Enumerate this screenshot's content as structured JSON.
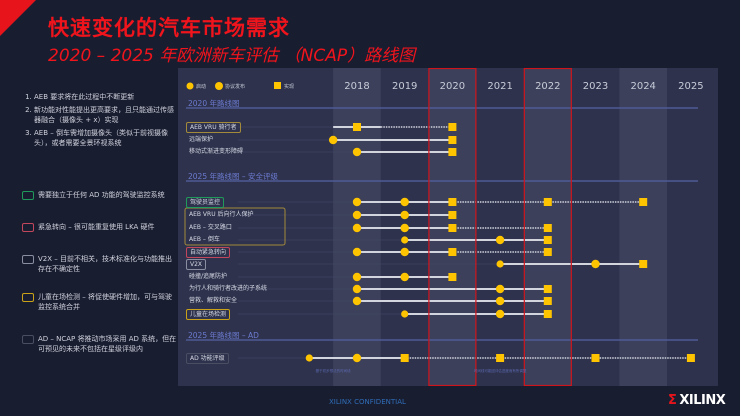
{
  "title": "快速变化的汽车市场需求",
  "subtitle": "2020 – 2025 年欧洲新车评估 （NCAP）路线图",
  "notes": [
    "AEB 要求将在此过程中不断更新",
    "新功能对性能提出更高要求，且只能通过传感器融合（摄像头 + x）实现",
    "AEB – 倒车需增加摄像头（类似于前视摄像头），或者需要全景环视系统"
  ],
  "legend": [
    {
      "color": "#1f9a5a",
      "text": "需要独立于任何 AD 功能的驾驶监控系统"
    },
    {
      "color": "#c2475c",
      "text": "紧急转向 – 很可能重复使用 LKA 硬件"
    },
    {
      "color": "#8a8ea0",
      "text": "V2X – 目前不相关，技术标准化与功能推出存在不确定性"
    },
    {
      "color": "#c9a21a",
      "text": "儿童在场检测 – 将促使硬件增加，可与驾驶监控系统合并"
    },
    {
      "color": "#4a4e62",
      "text": "AD – NCAP 将推动市场采用 AD 系统，但在可预见的未来不包括在星级评级内"
    }
  ],
  "colors": {
    "marker": "#ffc400",
    "highlight": "#d0141c",
    "section": "#6c7bd0"
  },
  "chart_data": {
    "type": "timeline",
    "years": [
      "2018",
      "2019",
      "2020",
      "2021",
      "2022",
      "2023",
      "2024",
      "2025"
    ],
    "highlighted_years": [
      "2020",
      "2022"
    ],
    "marker_legend": {
      "start": "启动",
      "protocol": "协议发布",
      "implement": "实现"
    },
    "sections": [
      {
        "title": "2020 年路线图",
        "rows": [
          {
            "label": "AEB VRU 骑行者",
            "box": "#a38a3a",
            "from": 2017.5,
            "marks": [
              [
                2018,
                "implement"
              ],
              [
                2020,
                "implement"
              ]
            ],
            "segments": [
              [
                2017.5,
                2018.5,
                "solid"
              ],
              [
                2018.5,
                2020,
                "dotted"
              ]
            ]
          },
          {
            "label": "远端保护",
            "from": 2017.5,
            "marks": [
              [
                2017.5,
                "protocol"
              ],
              [
                2020,
                "implement"
              ]
            ],
            "segments": [
              [
                2017.5,
                2020,
                "solid"
              ]
            ]
          },
          {
            "label": "移动式渐进变形障碍",
            "from": 2018,
            "marks": [
              [
                2018,
                "protocol"
              ],
              [
                2020,
                "implement"
              ]
            ],
            "segments": [
              [
                2018,
                2020,
                "solid"
              ]
            ]
          }
        ]
      },
      {
        "title": "2025 年路线图 – 安全评级",
        "rows": [
          {
            "label": "驾驶员监控",
            "box": "#1f9a5a",
            "marks": [
              [
                2018,
                "protocol"
              ],
              [
                2019,
                "protocol"
              ],
              [
                2020,
                "implement"
              ],
              [
                2022,
                "implement"
              ],
              [
                2024,
                "implement"
              ]
            ],
            "segments": [
              [
                2018,
                2020,
                "solid"
              ],
              [
                2020,
                2024,
                "dotted"
              ]
            ]
          },
          {
            "label": "AEB VRU 后向行人保护",
            "marks": [
              [
                2018,
                "protocol"
              ],
              [
                2019,
                "protocol"
              ],
              [
                2020,
                "implement"
              ]
            ],
            "segments": [
              [
                2018,
                2020,
                "solid"
              ]
            ]
          },
          {
            "label": "AEB – 交叉路口",
            "marks": [
              [
                2018,
                "protocol"
              ],
              [
                2019,
                "protocol"
              ],
              [
                2020,
                "implement"
              ],
              [
                2022,
                "implement"
              ]
            ],
            "segments": [
              [
                2018,
                2020,
                "solid"
              ],
              [
                2020,
                2022,
                "dotted"
              ]
            ]
          },
          {
            "label": "AEB – 倒车",
            "marks": [
              [
                2019,
                "start"
              ],
              [
                2021,
                "protocol"
              ],
              [
                2022,
                "implement"
              ]
            ],
            "segments": [
              [
                2019,
                2022,
                "solid"
              ]
            ]
          },
          {
            "label": "自动紧急转向",
            "box": "#c2475c",
            "marks": [
              [
                2018,
                "protocol"
              ],
              [
                2019,
                "protocol"
              ],
              [
                2020,
                "implement"
              ],
              [
                2022,
                "implement"
              ]
            ],
            "segments": [
              [
                2018,
                2020,
                "solid"
              ],
              [
                2020,
                2022,
                "dotted"
              ]
            ]
          },
          {
            "label": "V2X",
            "box": "#8a8ea0",
            "marks": [
              [
                2021,
                "start"
              ],
              [
                2023,
                "protocol"
              ],
              [
                2024,
                "implement"
              ]
            ],
            "segments": [
              [
                2021,
                2024,
                "solid"
              ]
            ]
          },
          {
            "label": "碰撞/追尾防护",
            "marks": [
              [
                2018,
                "protocol"
              ],
              [
                2019,
                "protocol"
              ],
              [
                2020,
                "implement"
              ]
            ],
            "segments": [
              [
                2018,
                2020,
                "solid"
              ]
            ]
          },
          {
            "label": "为行人和骑行者改进的子系统",
            "marks": [
              [
                2018,
                "protocol"
              ],
              [
                2021,
                "protocol"
              ],
              [
                2022,
                "implement"
              ]
            ],
            "segments": [
              [
                2018,
                2022,
                "solid"
              ]
            ]
          },
          {
            "label": "营救、解救和安全",
            "marks": [
              [
                2018,
                "protocol"
              ],
              [
                2021,
                "protocol"
              ],
              [
                2022,
                "implement"
              ]
            ],
            "segments": [
              [
                2018,
                2022,
                "solid"
              ]
            ]
          },
          {
            "label": "儿童在场检测",
            "box": "#c9a21a",
            "marks": [
              [
                2019,
                "start"
              ],
              [
                2021,
                "protocol"
              ],
              [
                2022,
                "implement"
              ]
            ],
            "segments": [
              [
                2019,
                2022,
                "solid"
              ]
            ]
          }
        ]
      },
      {
        "title": "2025 年路线图 – AD",
        "rows": [
          {
            "label": "AD 功能评级",
            "box": "#4a4e62",
            "marks": [
              [
                2017,
                "start"
              ],
              [
                2018,
                "protocol"
              ],
              [
                2019,
                "implement"
              ],
              [
                2021,
                "implement"
              ],
              [
                2023,
                "implement"
              ],
              [
                2025,
                "implement"
              ]
            ],
            "segments": [
              [
                2017,
                2019,
                "solid"
              ],
              [
                2019,
                2025,
                "dotted"
              ]
            ]
          }
        ]
      }
    ],
    "annotations": [
      "基于初步想法的时间线",
      "时间线可能因评估进度而有所调整"
    ]
  },
  "footer": "XILINX CONFIDENTIAL",
  "logo": "XILINX"
}
